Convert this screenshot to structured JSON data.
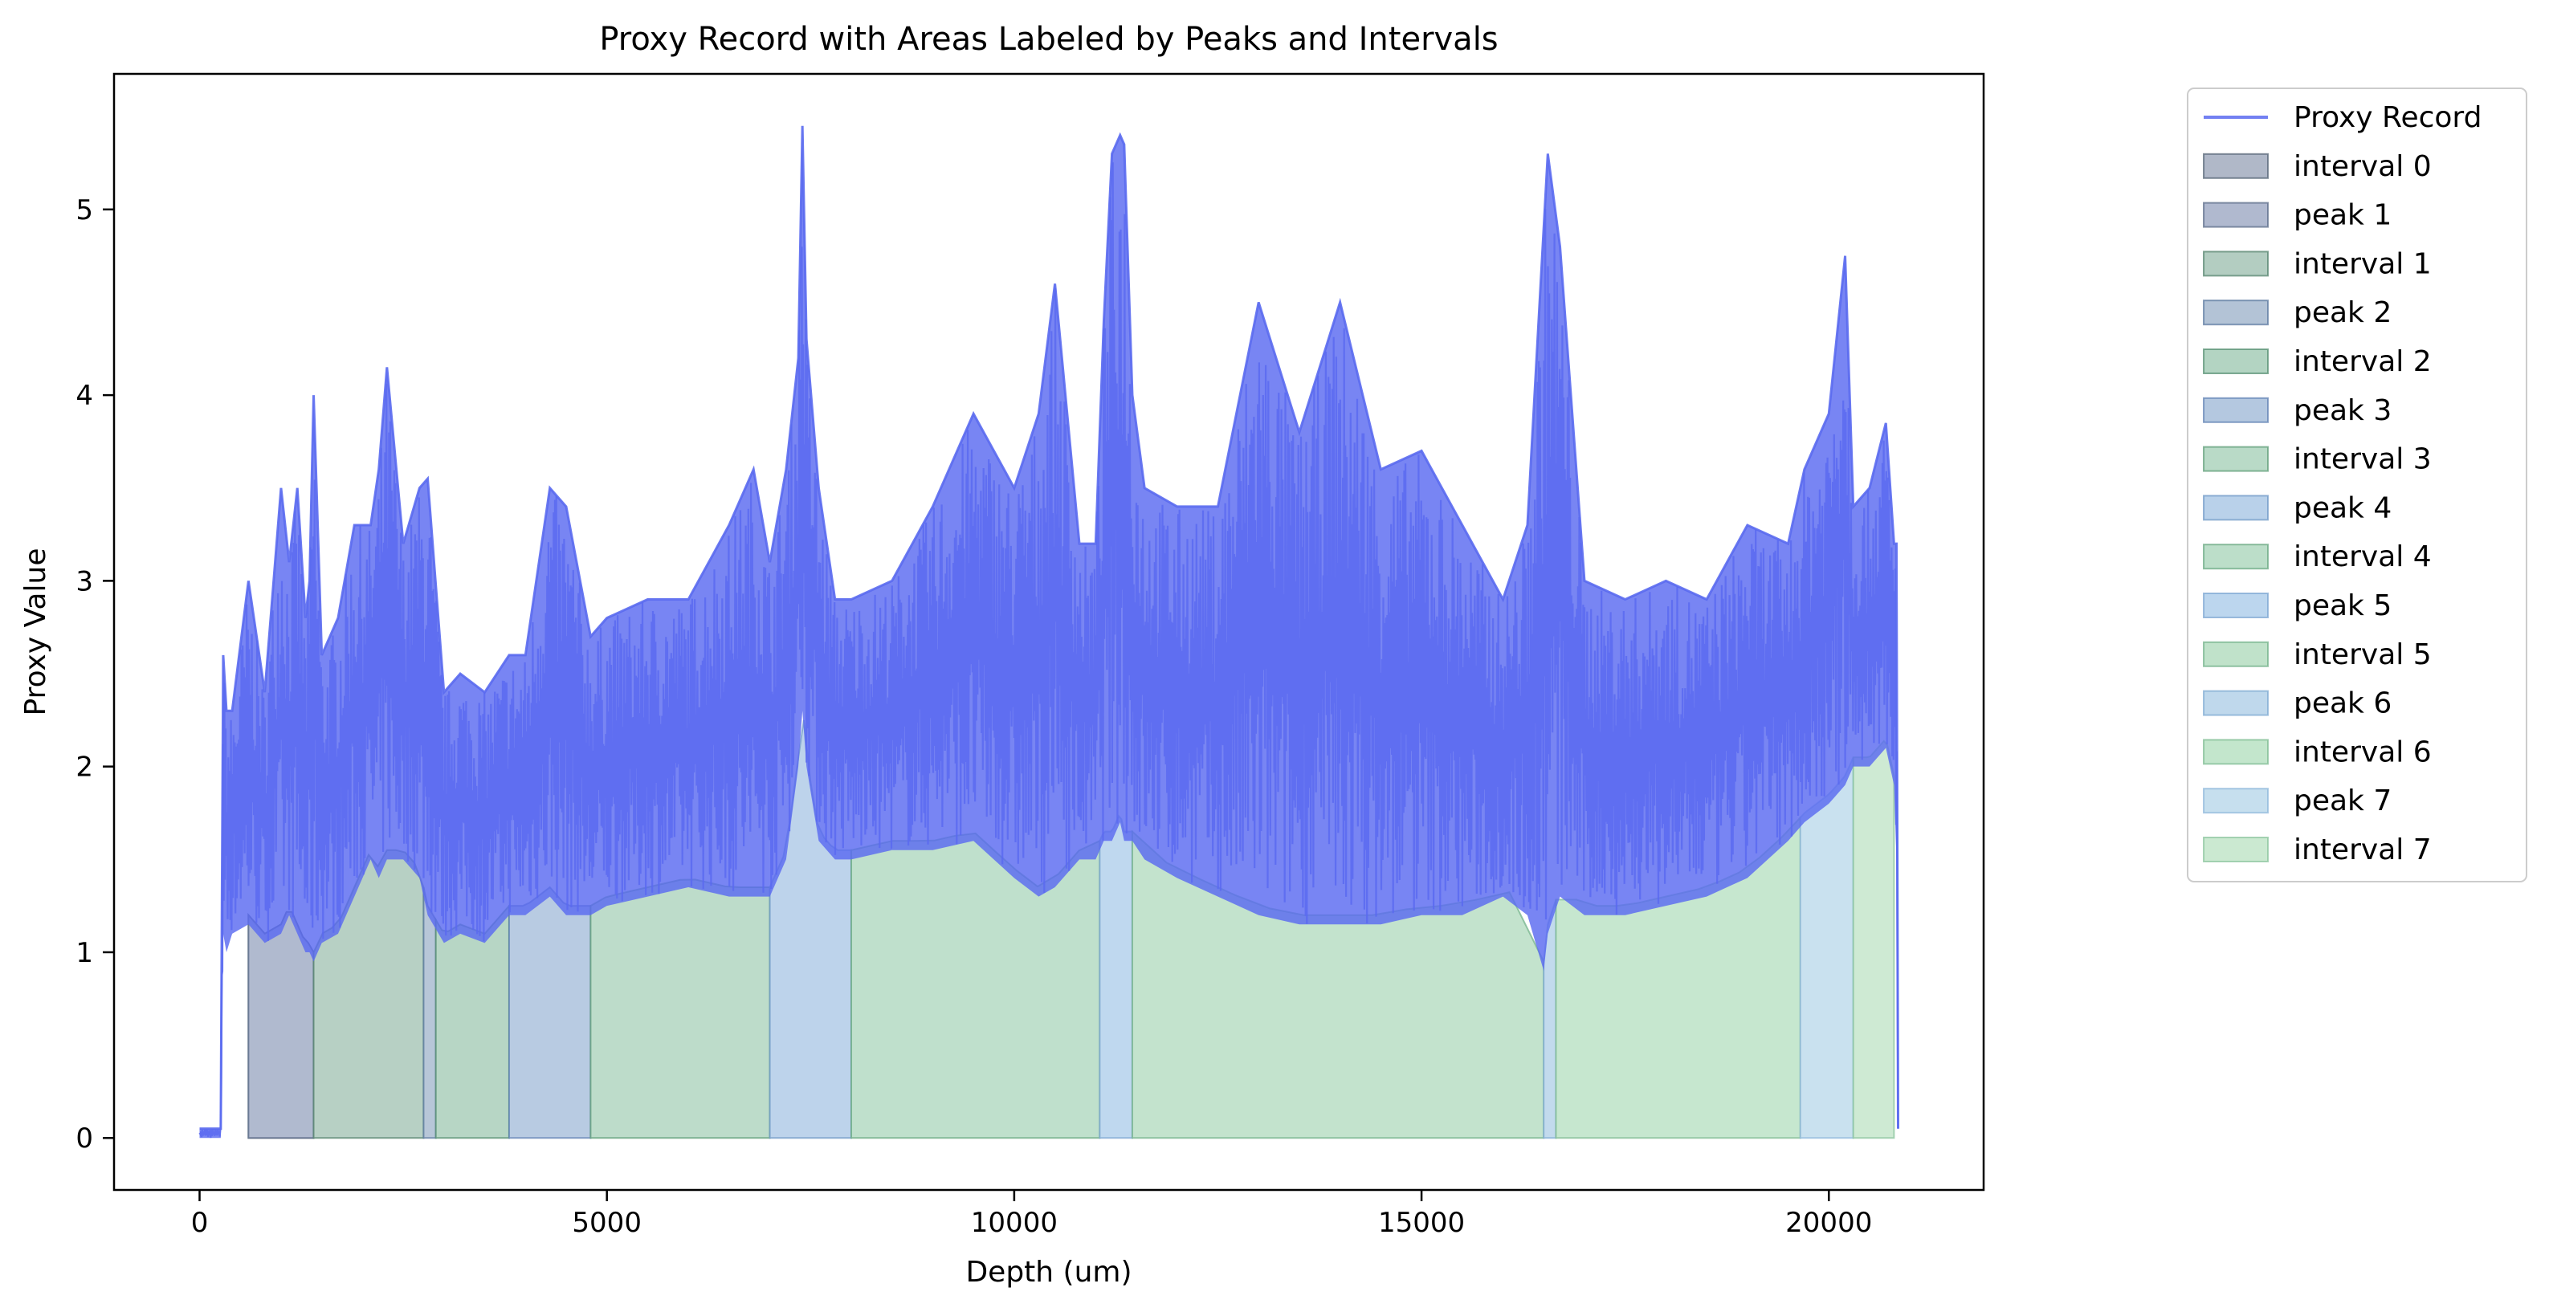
{
  "chart_data": {
    "type": "area",
    "title": "Proxy Record with Areas Labeled by Peaks and Intervals",
    "xlabel": "Depth (um)",
    "ylabel": "Proxy Value",
    "xlim": [
      -1050,
      21900
    ],
    "ylim": [
      -0.28,
      5.73
    ],
    "xticks": [
      0,
      5000,
      10000,
      15000,
      20000
    ],
    "xtick_labels": [
      "0",
      "5000",
      "10000",
      "15000",
      "20000"
    ],
    "yticks": [
      0,
      1,
      2,
      3,
      4,
      5
    ],
    "ytick_labels": [
      "0",
      "1",
      "2",
      "3",
      "4",
      "5"
    ],
    "grid": false,
    "legend_position": "outside-right",
    "line_series": {
      "name": "Proxy Record",
      "color": "#5a6af0",
      "x": [
        0,
        260,
        290,
        330,
        400,
        600,
        800,
        1000,
        1100,
        1200,
        1300,
        1350,
        1400,
        1500,
        1700,
        1900,
        2100,
        2200,
        2300,
        2500,
        2700,
        2800,
        3000,
        3200,
        3500,
        3800,
        4000,
        4300,
        4500,
        4800,
        5000,
        5500,
        6000,
        6500,
        6800,
        7000,
        7200,
        7350,
        7400,
        7450,
        7600,
        7800,
        8000,
        8500,
        9000,
        9500,
        10000,
        10300,
        10500,
        10800,
        11000,
        11100,
        11200,
        11300,
        11350,
        11450,
        11600,
        12000,
        12500,
        13000,
        13500,
        14000,
        14500,
        15000,
        15500,
        16000,
        16300,
        16500,
        16550,
        16700,
        17000,
        17500,
        18000,
        18500,
        19000,
        19500,
        19700,
        20000,
        20200,
        20300,
        20500,
        20700,
        20800,
        20830,
        20850
      ],
      "upper": [
        0.05,
        0.05,
        2.6,
        2.3,
        2.3,
        3.0,
        2.4,
        3.5,
        3.1,
        3.5,
        2.8,
        3.0,
        4.0,
        2.6,
        2.8,
        3.3,
        3.3,
        3.6,
        4.15,
        3.2,
        3.5,
        3.55,
        2.4,
        2.5,
        2.4,
        2.6,
        2.6,
        3.5,
        3.4,
        2.7,
        2.8,
        2.9,
        2.9,
        3.3,
        3.6,
        3.1,
        3.6,
        4.2,
        5.45,
        4.3,
        3.5,
        2.9,
        2.9,
        3.0,
        3.4,
        3.9,
        3.5,
        3.9,
        4.6,
        3.2,
        3.2,
        4.4,
        5.3,
        5.4,
        5.35,
        4.0,
        3.5,
        3.4,
        3.4,
        4.5,
        3.8,
        4.5,
        3.6,
        3.7,
        3.3,
        2.9,
        3.3,
        4.9,
        5.3,
        4.8,
        3.0,
        2.9,
        3.0,
        2.9,
        3.3,
        3.2,
        3.6,
        3.9,
        4.75,
        3.4,
        3.5,
        3.85,
        3.2,
        3.2,
        0.05
      ],
      "lower": [
        0.0,
        0.0,
        1.1,
        1.0,
        1.1,
        1.15,
        1.05,
        1.1,
        1.2,
        1.1,
        1.0,
        1.0,
        0.95,
        1.05,
        1.1,
        1.3,
        1.5,
        1.4,
        1.5,
        1.5,
        1.4,
        1.2,
        1.05,
        1.1,
        1.05,
        1.2,
        1.2,
        1.3,
        1.2,
        1.2,
        1.25,
        1.3,
        1.35,
        1.3,
        1.3,
        1.3,
        1.5,
        2.0,
        2.3,
        2.0,
        1.6,
        1.5,
        1.5,
        1.55,
        1.55,
        1.6,
        1.4,
        1.3,
        1.35,
        1.5,
        1.5,
        1.6,
        1.6,
        1.7,
        1.6,
        1.6,
        1.5,
        1.4,
        1.3,
        1.2,
        1.15,
        1.15,
        1.15,
        1.2,
        1.2,
        1.3,
        1.2,
        0.9,
        1.1,
        1.3,
        1.2,
        1.2,
        1.25,
        1.3,
        1.4,
        1.6,
        1.7,
        1.8,
        1.9,
        2.0,
        2.0,
        2.1,
        1.9,
        1.5,
        0.05
      ]
    },
    "areas": [
      {
        "name": "interval 0",
        "x0": 600,
        "x1": 1400,
        "fill": "#b0b8c8",
        "edge": "#506070"
      },
      {
        "name": "peak 1",
        "x0": 600,
        "x1": 1400,
        "fill": "#b0b9cf",
        "edge": "#556685"
      },
      {
        "name": "interval 1",
        "x0": 1400,
        "x1": 2750,
        "fill": "#b3cdc1",
        "edge": "#4f7f68"
      },
      {
        "name": "peak 2",
        "x0": 2750,
        "x1": 2900,
        "fill": "#b3c3d6",
        "edge": "#56759c"
      },
      {
        "name": "interval 2",
        "x0": 2900,
        "x1": 3800,
        "fill": "#b3d4c2",
        "edge": "#4f8a6b"
      },
      {
        "name": "peak 3",
        "x0": 3800,
        "x1": 4800,
        "fill": "#b4c8e0",
        "edge": "#5a7cb0"
      },
      {
        "name": "interval 3",
        "x0": 4800,
        "x1": 7000,
        "fill": "#b9dac7",
        "edge": "#5a9a74"
      },
      {
        "name": "peak 4",
        "x0": 7000,
        "x1": 8000,
        "fill": "#b9d1ea",
        "edge": "#6b95c5"
      },
      {
        "name": "interval 4",
        "x0": 8000,
        "x1": 11050,
        "fill": "#bcdec9",
        "edge": "#64a57e"
      },
      {
        "name": "peak 5",
        "x0": 11050,
        "x1": 11450,
        "fill": "#bcd6ee",
        "edge": "#78a2d0"
      },
      {
        "name": "interval 5",
        "x0": 11450,
        "x1": 16500,
        "fill": "#c0e2ca",
        "edge": "#6eaf86"
      },
      {
        "name": "peak 6",
        "x0": 16500,
        "x1": 16650,
        "fill": "#bfd8ec",
        "edge": "#7aa8d2"
      },
      {
        "name": "interval 6",
        "x0": 16650,
        "x1": 19650,
        "fill": "#c3e6cc",
        "edge": "#7ab98f"
      },
      {
        "name": "peak 7",
        "x0": 19650,
        "x1": 20300,
        "fill": "#c6dfee",
        "edge": "#8ab5da"
      },
      {
        "name": "interval 7",
        "x0": 20300,
        "x1": 20800,
        "fill": "#cbe9d1",
        "edge": "#86c29a"
      }
    ],
    "legend": [
      "Proxy Record",
      "interval 0",
      "peak 1",
      "interval 1",
      "peak 2",
      "interval 2",
      "peak 3",
      "interval 3",
      "peak 4",
      "interval 4",
      "peak 5",
      "interval 5",
      "peak 6",
      "interval 6",
      "peak 7",
      "interval 7"
    ]
  }
}
